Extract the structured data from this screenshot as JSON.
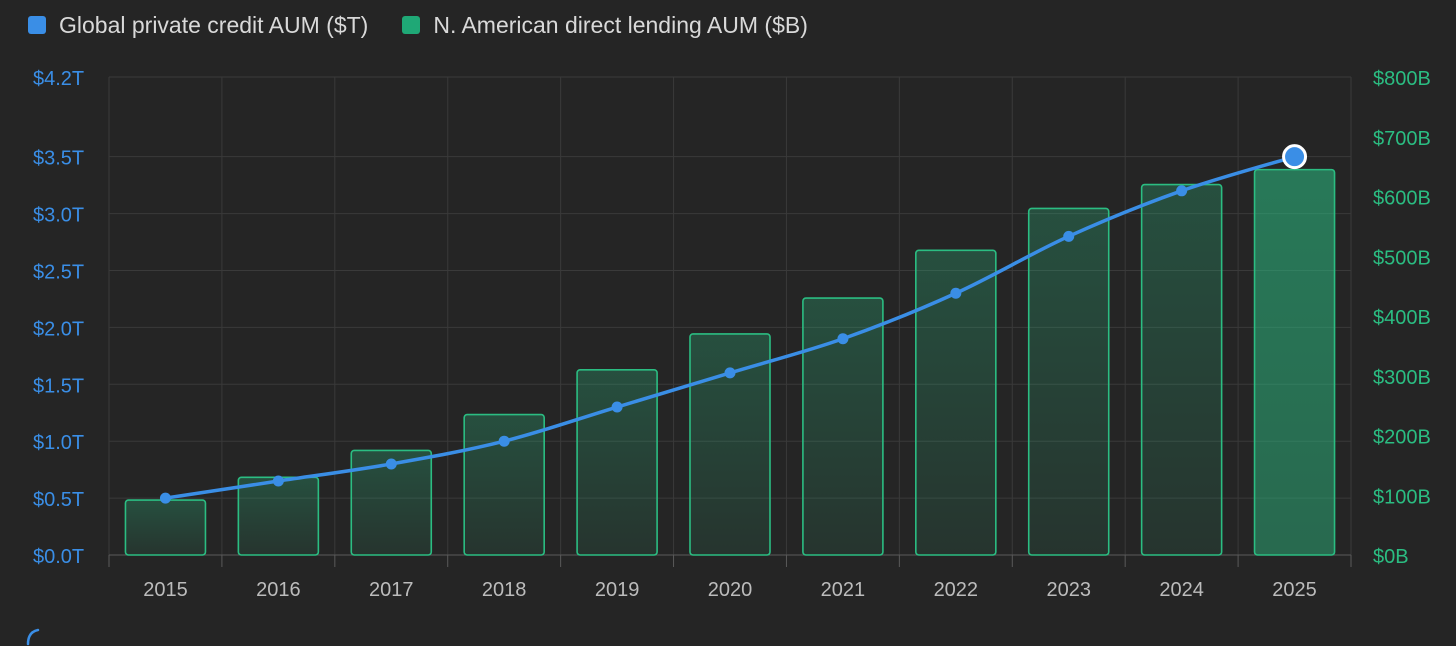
{
  "legend": {
    "items": [
      {
        "label": "Global private credit AUM ($T)",
        "color": "#3a8ee6"
      },
      {
        "label": "N. American direct lending AUM ($B)",
        "color": "#1fa876"
      }
    ]
  },
  "colors": {
    "background": "#252525",
    "grid": "#3a3a3a",
    "line": "#3a8ee6",
    "bar_stroke": "#2bbd82",
    "left_axis_text": "#3a8ee6",
    "right_axis_text": "#2bbd82",
    "x_axis_text": "#bcbcbc"
  },
  "chart_data": {
    "type": "bar",
    "categories": [
      "2015",
      "2016",
      "2017",
      "2018",
      "2019",
      "2020",
      "2021",
      "2022",
      "2023",
      "2024",
      "2025"
    ],
    "series": [
      {
        "name": "Global private credit AUM ($T)",
        "type": "line",
        "axis": "left",
        "values": [
          0.5,
          0.65,
          0.8,
          1.0,
          1.3,
          1.6,
          1.9,
          2.3,
          2.8,
          3.2,
          3.5
        ]
      },
      {
        "name": "N. American direct lending AUM ($B)",
        "type": "bar",
        "axis": "right",
        "values": [
          92,
          130,
          175,
          235,
          310,
          370,
          430,
          510,
          580,
          620,
          645
        ]
      }
    ],
    "left_axis": {
      "ticks": [
        0.0,
        0.5,
        1.0,
        1.5,
        2.0,
        2.5,
        3.0,
        3.5,
        4.2
      ],
      "tick_labels": [
        "$0.0T",
        "$0.5T",
        "$1.0T",
        "$1.5T",
        "$2.0T",
        "$2.5T",
        "$3.0T",
        "$3.5T",
        "$4.2T"
      ],
      "range": [
        0,
        4.2
      ]
    },
    "right_axis": {
      "ticks": [
        0,
        100,
        200,
        300,
        400,
        500,
        600,
        700,
        800
      ],
      "tick_labels": [
        "$0B",
        "$100B",
        "$200B",
        "$300B",
        "$400B",
        "$500B",
        "$600B",
        "$700B",
        "$800B"
      ],
      "range": [
        0,
        800
      ]
    },
    "highlighted_category": "2025",
    "grid": true,
    "legend_position": "top-left"
  }
}
